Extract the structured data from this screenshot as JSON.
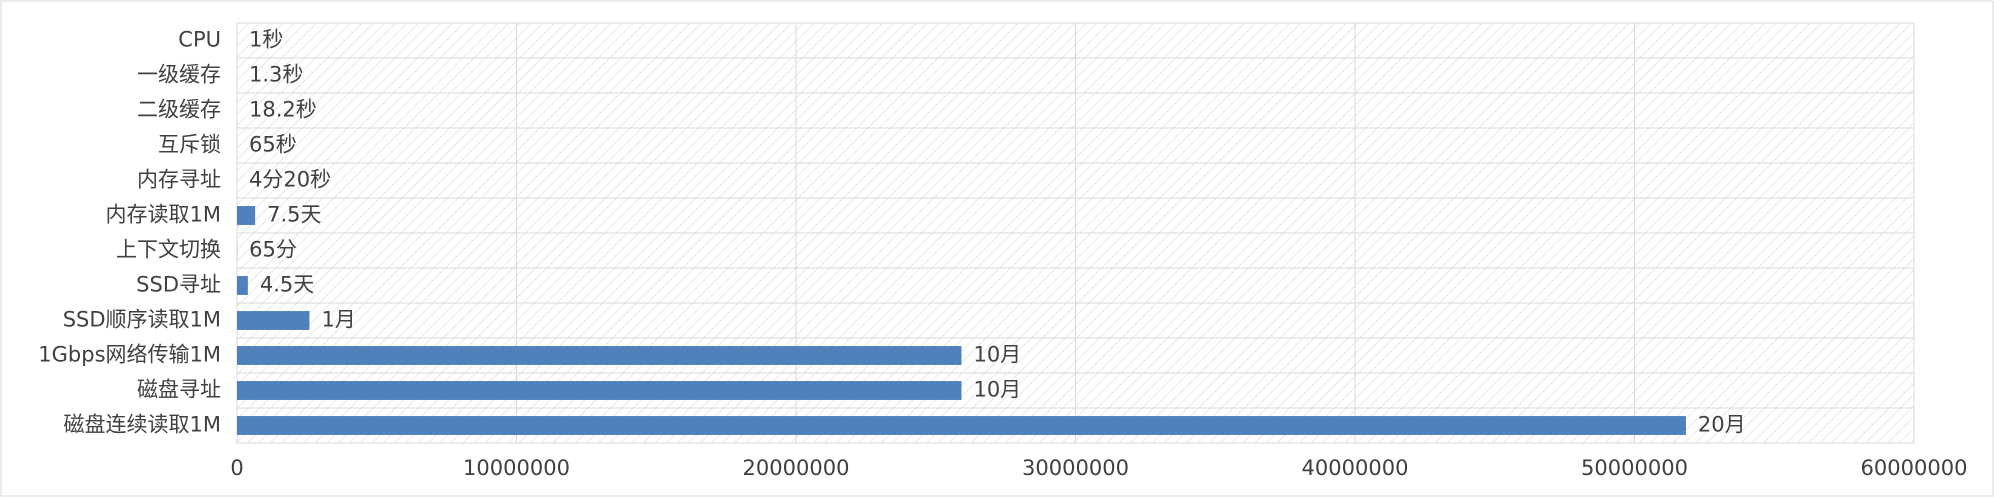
{
  "chart_data": {
    "type": "bar",
    "orientation": "horizontal",
    "categories": [
      "CPU",
      "一级缓存",
      "二级缓存",
      "互斥锁",
      "内存寻址",
      "内存读取1M",
      "上下文切换",
      "SSD寻址",
      "SSD顺序读取1M",
      "1Gbps网络传输1M",
      "磁盘寻址",
      "磁盘连续读取1M"
    ],
    "values": [
      1,
      1.3,
      18.2,
      65,
      260,
      648000,
      3900,
      388800,
      2592000,
      25920000,
      25920000,
      51840000
    ],
    "value_labels": [
      "1秒",
      "1.3秒",
      "18.2秒",
      "65秒",
      "4分20秒",
      "7.5天",
      "65分",
      "4.5天",
      "1月",
      "10月",
      "10月",
      "20月"
    ],
    "color": "#4f81bd",
    "xlim": [
      0,
      60000000
    ],
    "xticks": [
      0,
      10000000,
      20000000,
      30000000,
      40000000,
      50000000,
      60000000
    ],
    "grid": true
  }
}
